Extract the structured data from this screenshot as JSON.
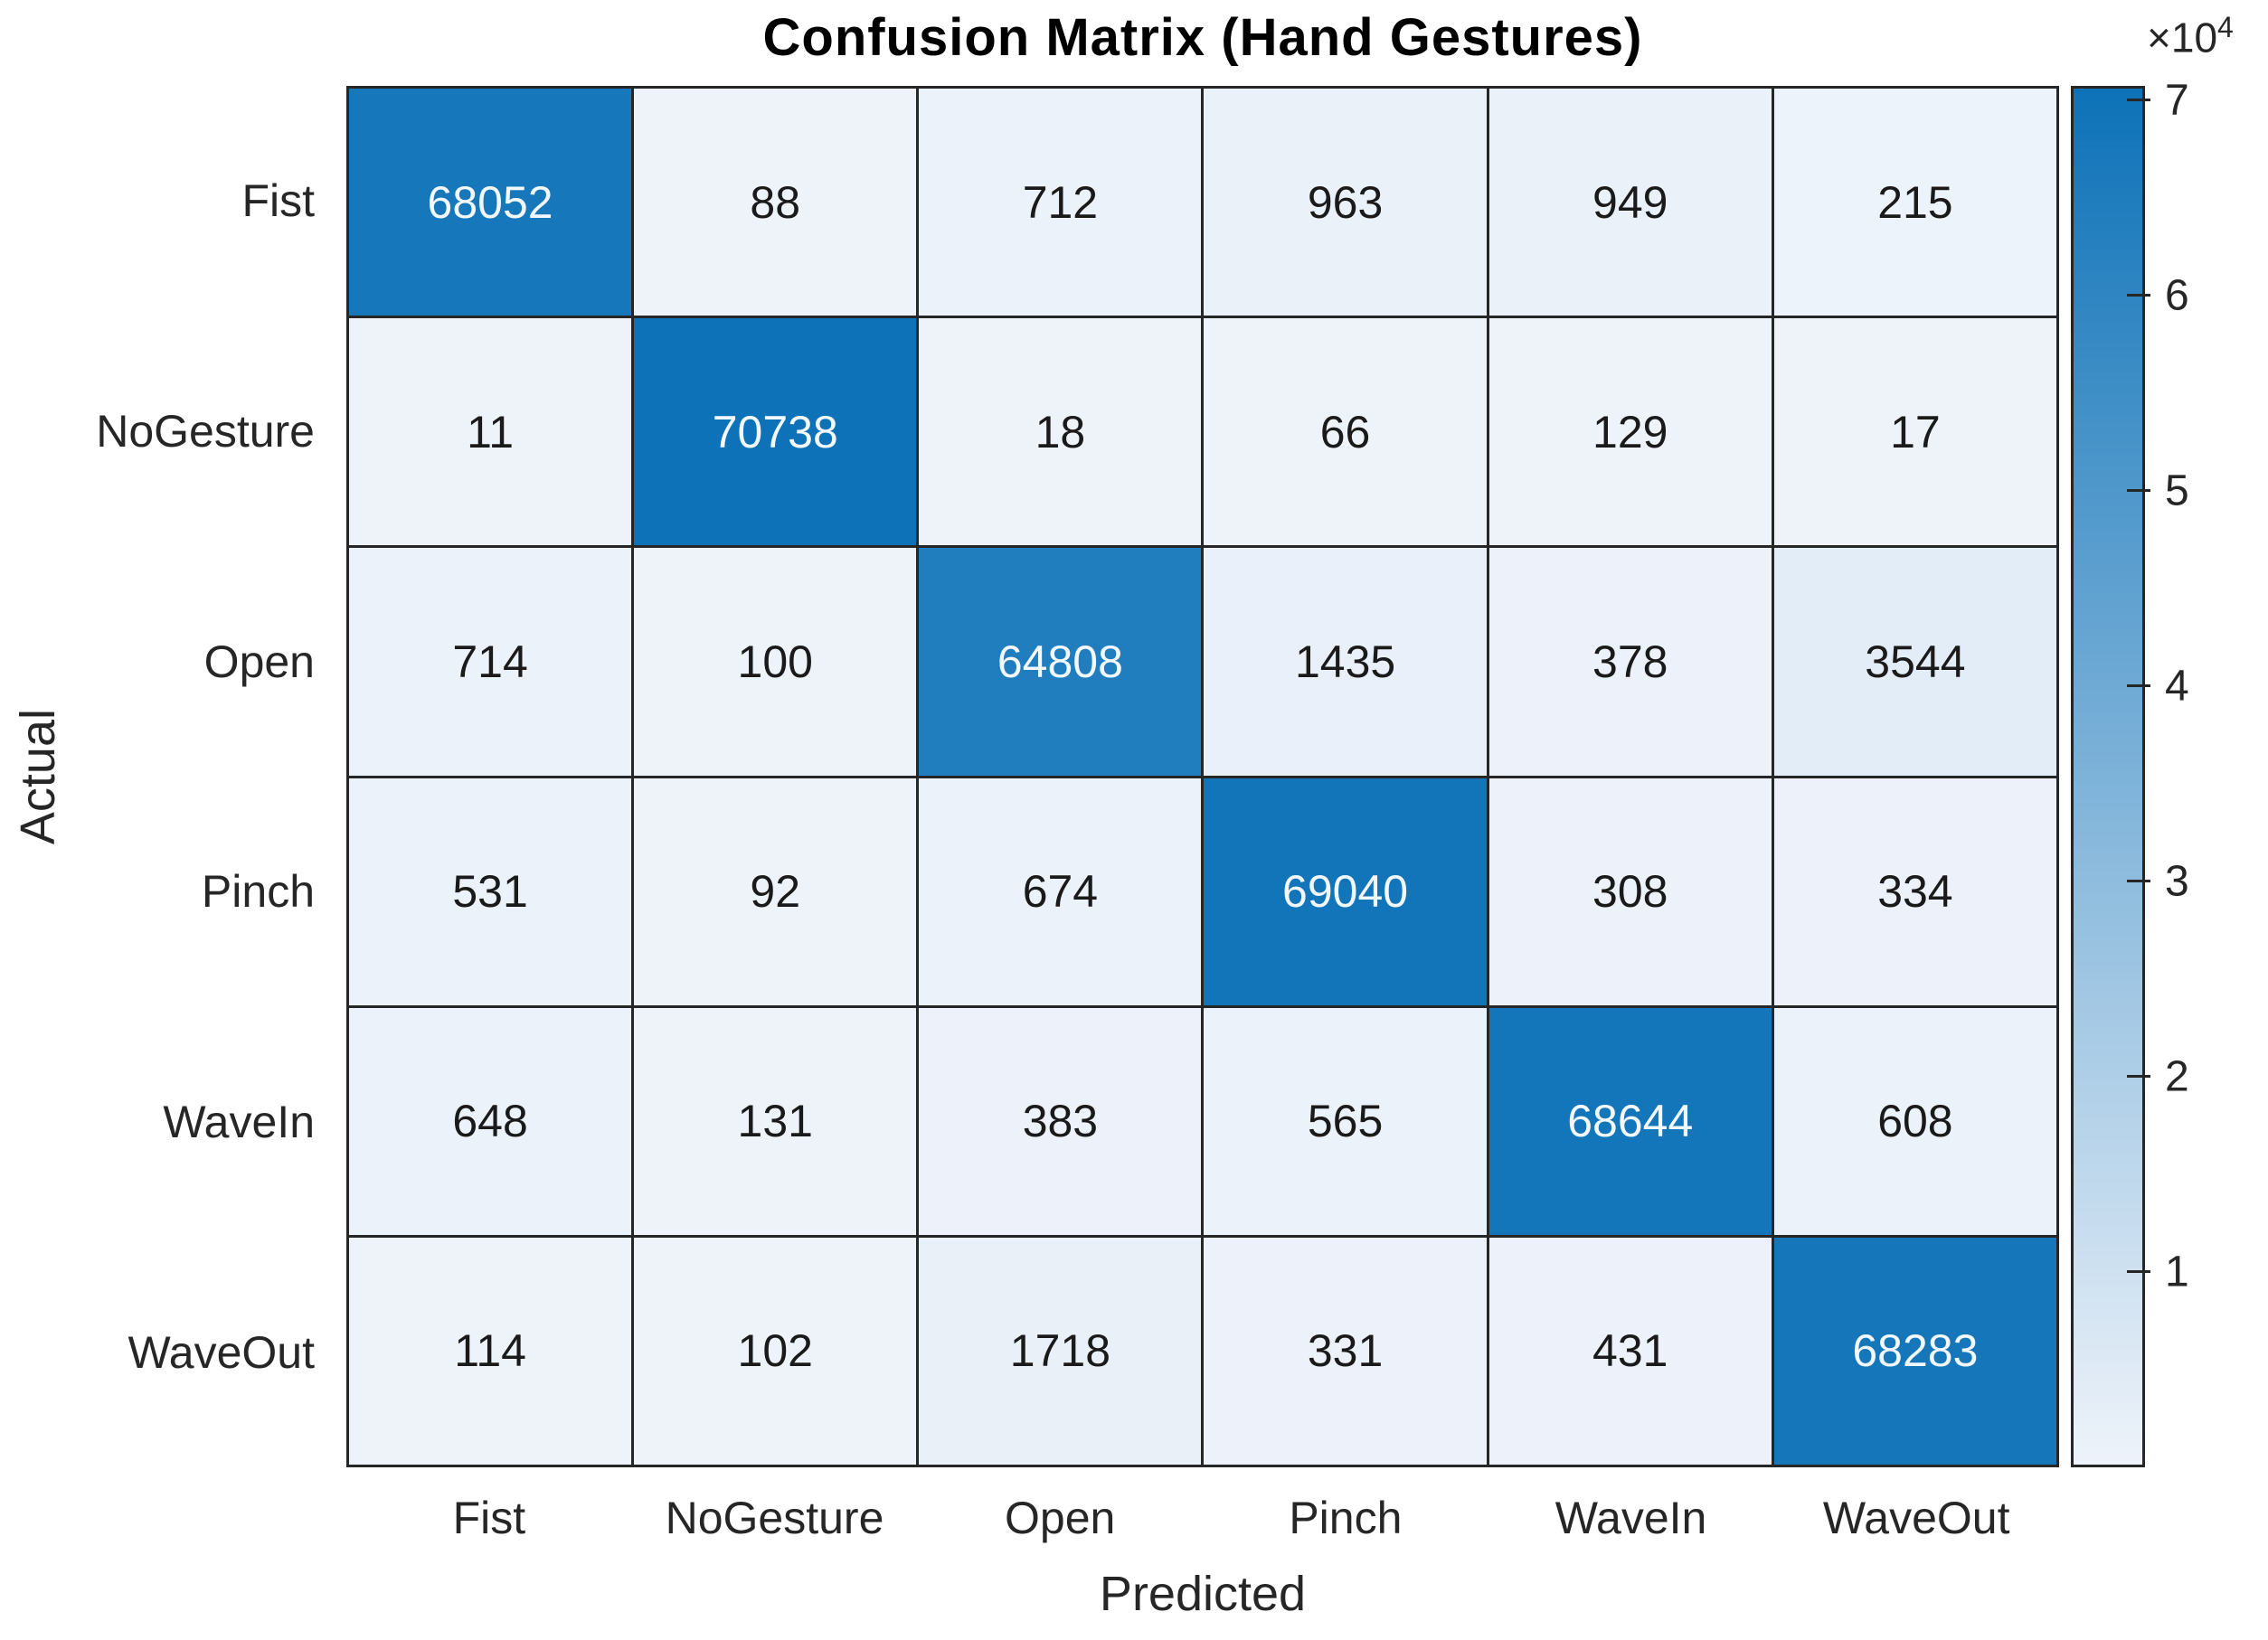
{
  "chart_data": {
    "type": "heatmap",
    "title": "Confusion Matrix (Hand Gestures)",
    "xlabel": "Predicted",
    "ylabel": "Actual",
    "classes": [
      "Fist",
      "NoGesture",
      "Open",
      "Pinch",
      "WaveIn",
      "WaveOut"
    ],
    "matrix": [
      [
        68052,
        88,
        712,
        963,
        949,
        215
      ],
      [
        11,
        70738,
        18,
        66,
        129,
        17
      ],
      [
        714,
        100,
        64808,
        1435,
        378,
        3544
      ],
      [
        531,
        92,
        674,
        69040,
        308,
        334
      ],
      [
        648,
        131,
        383,
        565,
        68644,
        608
      ],
      [
        114,
        102,
        1718,
        331,
        431,
        68283
      ]
    ],
    "colorbar": {
      "ticks": [
        1,
        2,
        3,
        4,
        5,
        6,
        7
      ],
      "tick_scale": 10000,
      "min_value": 0,
      "max_value": 70738,
      "multiplier": "×10",
      "exponent": "4"
    },
    "colors": {
      "high": "#0d72b8",
      "low": "#eef3fa",
      "grid": "#262626",
      "text_dark": "#1a1a1a",
      "text_light": "#f2f8fd"
    },
    "grid": true,
    "legend_position": "right-colorbar"
  }
}
